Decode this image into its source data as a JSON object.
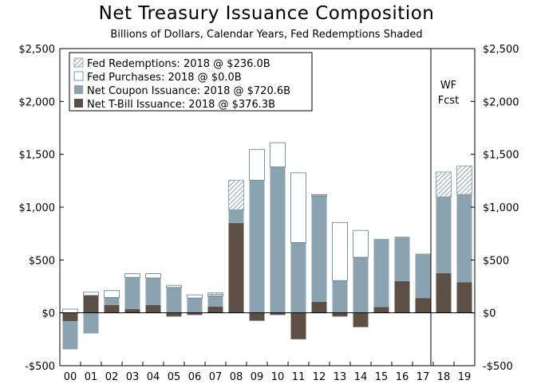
{
  "chart_data": {
    "type": "bar",
    "stacked": true,
    "title": "Net Treasury Issuance Composition",
    "subtitle": "Billions of Dollars, Calendar Years, Fed Redemptions Shaded",
    "categories": [
      "00",
      "01",
      "02",
      "03",
      "04",
      "05",
      "06",
      "07",
      "08",
      "09",
      "10",
      "11",
      "12",
      "13",
      "14",
      "15",
      "16",
      "17",
      "18",
      "19"
    ],
    "series": [
      {
        "name": "Net T-Bill Issuance",
        "legend_label": "Net T-Bill Issuance: 2018 @ $376.3B",
        "color": "#5c4f45",
        "pattern": "solid",
        "values": [
          -80,
          165,
          75,
          35,
          75,
          -35,
          -20,
          60,
          850,
          -75,
          -20,
          -250,
          105,
          -35,
          -135,
          55,
          300,
          140,
          376.3,
          290
        ]
      },
      {
        "name": "Net Coupon Issuance",
        "legend_label": "Net Coupon Issuance: 2018 @ $720.6B",
        "color": "#8ba3b1",
        "pattern": "solid",
        "values": [
          -265,
          -195,
          70,
          300,
          255,
          240,
          140,
          100,
          125,
          1255,
          1380,
          665,
          1000,
          305,
          525,
          645,
          420,
          420,
          720.6,
          830
        ]
      },
      {
        "name": "Fed Purchases",
        "legend_label": "Fed Purchases: 2018 @ $0.0B",
        "color": "#ffffff",
        "pattern": "outline",
        "values": [
          35,
          30,
          65,
          35,
          40,
          20,
          30,
          15,
          0,
          290,
          230,
          660,
          10,
          550,
          255,
          0,
          0,
          0,
          0,
          0
        ]
      },
      {
        "name": "Fed Redemptions",
        "legend_label": "Fed Redemptions: 2018 @ $236.0B",
        "color": "#8ba3b1",
        "pattern": "hatched",
        "values": [
          0,
          0,
          0,
          0,
          0,
          0,
          0,
          15,
          280,
          0,
          0,
          0,
          5,
          0,
          0,
          0,
          0,
          0,
          236,
          270
        ]
      }
    ],
    "ylim": [
      -500,
      2500
    ],
    "yticks": [
      -500,
      0,
      500,
      1000,
      1500,
      2000,
      2500
    ],
    "ytick_labels": [
      "-$500",
      "$0",
      "$500",
      "$1,000",
      "$1,500",
      "$2,000",
      "$2,500"
    ],
    "forecast_start_category": "18",
    "forecast_label_line1": "WF",
    "forecast_label_line2": "Fcst",
    "legend_position": "top-left",
    "grid": false
  }
}
